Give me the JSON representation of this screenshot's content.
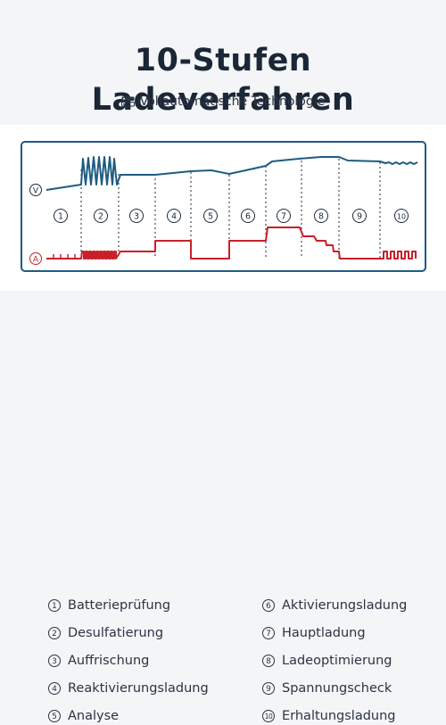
{
  "header": {
    "title": "10-Stufen Ladeverfahren",
    "subtitle": "Vollautomatische Technologie",
    "subtitle_icon": "battery-stack-icon"
  },
  "diagram": {
    "voltage_label": "V",
    "current_label": "A",
    "colors": {
      "frame": "#1f5b82",
      "voltage": "#1f5b82",
      "current": "#c8202a",
      "stage_circle": "#1e2a3a"
    },
    "stages": [
      "1",
      "2",
      "3",
      "4",
      "5",
      "6",
      "7",
      "8",
      "9",
      "10"
    ]
  },
  "legend": {
    "items": [
      {
        "num": "1",
        "label": "Batterieprüfung"
      },
      {
        "num": "2",
        "label": "Desulfatierung"
      },
      {
        "num": "3",
        "label": "Auffrischung"
      },
      {
        "num": "4",
        "label": "Reaktivierungsladung"
      },
      {
        "num": "5",
        "label": "Analyse"
      },
      {
        "num": "6",
        "label": "Aktivierungsladung"
      },
      {
        "num": "7",
        "label": "Hauptladung"
      },
      {
        "num": "8",
        "label": "Ladeoptimierung"
      },
      {
        "num": "9",
        "label": "Spannungscheck"
      },
      {
        "num": "10",
        "label": "Erhaltungsladung"
      }
    ]
  }
}
